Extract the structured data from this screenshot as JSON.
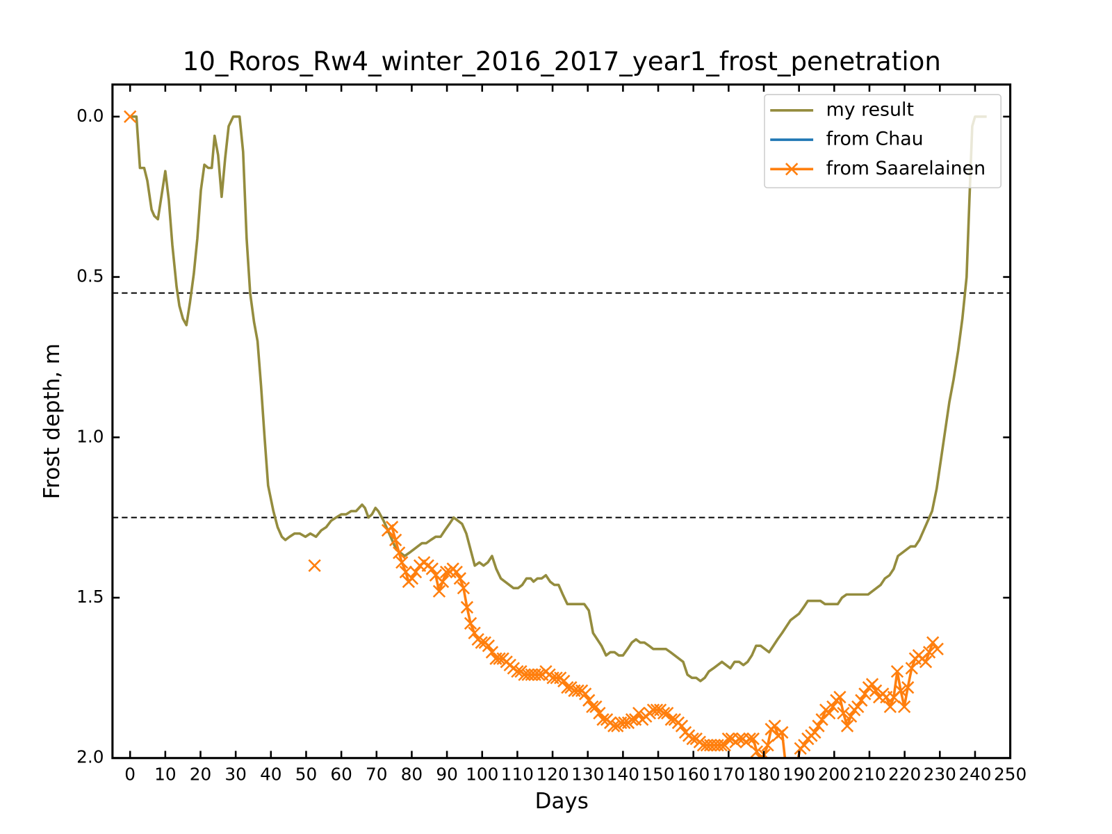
{
  "chart_data": {
    "type": "line",
    "title": "10_Roros_Rw4_winter_2016_2017_year1_frost_penetration",
    "xlabel": "Days",
    "ylabel": "Frost depth, m",
    "xlim": [
      -5,
      250
    ],
    "xticks": [
      0,
      10,
      20,
      30,
      40,
      50,
      60,
      70,
      80,
      90,
      100,
      110,
      120,
      130,
      140,
      150,
      160,
      170,
      180,
      190,
      200,
      210,
      220,
      230,
      240,
      250
    ],
    "ylim": [
      2.0,
      -0.1
    ],
    "y_inverted": true,
    "yticks": [
      {
        "value": 0,
        "label": "0.0"
      },
      0.5,
      {
        "value": 1,
        "label": "1.0"
      },
      1.5,
      {
        "value": 2,
        "label": "2.0"
      }
    ],
    "hlines": [
      0.55,
      1.25
    ],
    "legend": "upper right",
    "series": [
      {
        "name": "my result",
        "color": "#948c3e",
        "marker": "none",
        "x": [
          0,
          1.8,
          2.8,
          4,
          4.9,
          6.1,
          6.9,
          7.9,
          10,
          11,
          12,
          13.2,
          14,
          15,
          16,
          17,
          18.1,
          19.1,
          20.1,
          21.1,
          22.2,
          23.2,
          24,
          25,
          26,
          27,
          28,
          29.3,
          31.1,
          32.1,
          33.1,
          34.1,
          35.2,
          36.2,
          37.2,
          38.2,
          39.2,
          40.7,
          41.9,
          43.1,
          44.1,
          45.3,
          46.7,
          48.2,
          49.8,
          51.2,
          52.8,
          54.3,
          55.7,
          57.1,
          58.5,
          60,
          61.4,
          62.8,
          64.2,
          65.9,
          66.7,
          67.7,
          68.7,
          69.7,
          70.5,
          72,
          73.2,
          74.4,
          75.6,
          76.8,
          78,
          79.3,
          80.5,
          81.7,
          82.9,
          84.1,
          85.4,
          86.8,
          88.2,
          89.4,
          90.7,
          91.9,
          93.1,
          94.3,
          95.5,
          96.7,
          97.9,
          99.2,
          100.4,
          101.6,
          102.8,
          104,
          105.3,
          106.5,
          107.7,
          108.9,
          110.2,
          111.4,
          112.6,
          113.8,
          114.6,
          115.7,
          116.9,
          118.1,
          119.3,
          120.5,
          121.7,
          122.9,
          124.2,
          125.4,
          126.6,
          129,
          130.3,
          131.5,
          132.7,
          133.9,
          135.2,
          136.4,
          137.6,
          138.8,
          140,
          141.3,
          142.5,
          143.7,
          144.9,
          146.1,
          147.4,
          148.6,
          149.8,
          151,
          152.2,
          153.5,
          154.7,
          155.9,
          157.1,
          158.3,
          159.6,
          160.8,
          162,
          163.2,
          164.4,
          165.7,
          166.9,
          168.1,
          169.3,
          170.5,
          171.7,
          173,
          174.2,
          175.4,
          176.6,
          177.8,
          179.1,
          180.3,
          181.5,
          182.7,
          183.9,
          185.2,
          186.4,
          187.6,
          188.8,
          190,
          191.3,
          192.5,
          193.7,
          194.9,
          196.1,
          197.4,
          198.6,
          199.8,
          201,
          202.2,
          203.5,
          204.7,
          205.9,
          207.1,
          208.3,
          209.6,
          210.8,
          212,
          213.2,
          214.4,
          215.7,
          216.9,
          218.1,
          219.3,
          220.5,
          221.7,
          223,
          224.2,
          225.4,
          226.6,
          227.8,
          229.1,
          230.3,
          231.5,
          232.7,
          233.9,
          235.2,
          236.4,
          237.6,
          238.4,
          239.2,
          240,
          243.3
        ],
        "values": [
          0,
          0,
          0.16,
          0.16,
          0.2,
          0.29,
          0.31,
          0.32,
          0.17,
          0.26,
          0.4,
          0.53,
          0.59,
          0.63,
          0.65,
          0.58,
          0.49,
          0.38,
          0.23,
          0.15,
          0.16,
          0.16,
          0.06,
          0.12,
          0.25,
          0.13,
          0.03,
          0,
          0,
          0.11,
          0.38,
          0.55,
          0.64,
          0.7,
          0.84,
          1.0,
          1.15,
          1.23,
          1.28,
          1.31,
          1.32,
          1.31,
          1.3,
          1.3,
          1.31,
          1.3,
          1.31,
          1.29,
          1.28,
          1.26,
          1.25,
          1.24,
          1.24,
          1.23,
          1.23,
          1.21,
          1.22,
          1.25,
          1.24,
          1.22,
          1.23,
          1.26,
          1.29,
          1.32,
          1.35,
          1.36,
          1.37,
          1.36,
          1.35,
          1.34,
          1.33,
          1.33,
          1.32,
          1.31,
          1.31,
          1.29,
          1.27,
          1.25,
          1.26,
          1.27,
          1.3,
          1.35,
          1.4,
          1.39,
          1.4,
          1.39,
          1.37,
          1.41,
          1.44,
          1.45,
          1.46,
          1.47,
          1.47,
          1.46,
          1.44,
          1.44,
          1.45,
          1.44,
          1.44,
          1.43,
          1.45,
          1.46,
          1.46,
          1.49,
          1.52,
          1.52,
          1.52,
          1.52,
          1.54,
          1.61,
          1.63,
          1.65,
          1.68,
          1.67,
          1.67,
          1.68,
          1.68,
          1.66,
          1.64,
          1.63,
          1.64,
          1.64,
          1.65,
          1.66,
          1.66,
          1.66,
          1.66,
          1.67,
          1.68,
          1.69,
          1.7,
          1.74,
          1.75,
          1.75,
          1.76,
          1.75,
          1.73,
          1.72,
          1.71,
          1.7,
          1.71,
          1.72,
          1.7,
          1.7,
          1.71,
          1.7,
          1.68,
          1.65,
          1.65,
          1.66,
          1.67,
          1.65,
          1.63,
          1.61,
          1.59,
          1.57,
          1.56,
          1.55,
          1.53,
          1.51,
          1.51,
          1.51,
          1.51,
          1.52,
          1.52,
          1.52,
          1.52,
          1.5,
          1.49,
          1.49,
          1.49,
          1.49,
          1.49,
          1.49,
          1.48,
          1.47,
          1.46,
          1.44,
          1.43,
          1.41,
          1.37,
          1.36,
          1.35,
          1.34,
          1.34,
          1.32,
          1.29,
          1.26,
          1.23,
          1.16,
          1.07,
          0.98,
          0.89,
          0.82,
          0.73,
          0.63,
          0.5,
          0.26,
          0.03,
          0,
          0
        ]
      },
      {
        "name": "from Chau",
        "color": "#1f77b4",
        "marker": "none",
        "x": [],
        "values": []
      },
      {
        "name": "from Saarelainen",
        "color": "#ff7f0e",
        "marker": "x",
        "x": [
          0,
          26,
          52.4,
          63,
          73.2,
          74.4,
          75.4,
          76.4,
          77.2,
          78.3,
          79.1,
          80.1,
          81.1,
          82.3,
          83.5,
          84.6,
          85.8,
          86.8,
          87.8,
          88.8,
          89.8,
          90.9,
          91.7,
          92.7,
          93.7,
          94.7,
          95.7,
          96.7,
          97.8,
          98.8,
          99.8,
          100.8,
          101.8,
          102.8,
          103.9,
          104.9,
          105.9,
          106.9,
          107.9,
          108.9,
          110,
          111,
          112,
          113,
          114,
          115,
          116.1,
          117.1,
          118.1,
          119.1,
          120.1,
          121.1,
          122.2,
          123.2,
          124.2,
          125.2,
          126.2,
          127.2,
          128.3,
          129.3,
          130.3,
          131.3,
          132.3,
          133.3,
          134.3,
          135.4,
          136.4,
          137.4,
          138.4,
          139.4,
          140.4,
          141.5,
          142.5,
          143.5,
          144.5,
          145.5,
          146.5,
          147.6,
          148.6,
          149.6,
          150.6,
          151.6,
          152.6,
          153.7,
          154.7,
          155.7,
          156.7,
          157.7,
          158.7,
          159.8,
          160.8,
          161.8,
          162.8,
          163.8,
          164.8,
          165.9,
          166.9,
          167.9,
          168.9,
          169.9,
          170.9,
          172,
          173,
          174,
          175,
          176,
          177,
          178,
          179.1,
          180.1,
          181.1,
          182.1,
          183.1,
          184.1,
          185.2,
          186.2,
          188,
          190.4,
          191.5,
          192.5,
          193.5,
          194.5,
          195.5,
          196.5,
          197.6,
          198.6,
          199.6,
          200.6,
          201.6,
          202.6,
          203.7,
          204.7,
          205.7,
          206.7,
          207.7,
          208.7,
          209.8,
          210.8,
          211.8,
          212.8,
          213.8,
          214.8,
          215.9,
          216.9,
          217.9,
          218.9,
          219.9,
          220.9,
          222,
          223,
          224,
          225,
          226,
          227,
          228,
          229.3
        ],
        "values": [
          0,
          null,
          1.4,
          null,
          1.29,
          1.28,
          1.32,
          1.36,
          1.39,
          1.42,
          1.45,
          1.44,
          1.42,
          1.4,
          1.39,
          1.4,
          1.41,
          1.43,
          1.48,
          1.45,
          1.42,
          1.42,
          1.41,
          1.42,
          1.44,
          1.47,
          1.53,
          1.58,
          1.61,
          1.63,
          1.64,
          1.64,
          1.65,
          1.67,
          1.69,
          1.69,
          1.69,
          1.7,
          1.71,
          1.72,
          1.73,
          1.73,
          1.74,
          1.74,
          1.74,
          1.74,
          1.74,
          1.74,
          1.73,
          1.74,
          1.75,
          1.75,
          1.75,
          1.76,
          1.78,
          1.78,
          1.79,
          1.79,
          1.79,
          1.8,
          1.82,
          1.84,
          1.84,
          1.86,
          1.88,
          1.88,
          1.89,
          1.9,
          1.9,
          1.89,
          1.89,
          1.89,
          1.88,
          1.88,
          1.86,
          1.88,
          1.87,
          1.86,
          1.85,
          1.85,
          1.85,
          1.86,
          1.86,
          1.88,
          1.88,
          1.89,
          1.9,
          1.92,
          1.93,
          1.94,
          1.94,
          1.95,
          1.96,
          1.96,
          1.96,
          1.96,
          1.96,
          1.96,
          1.96,
          1.94,
          1.94,
          1.95,
          1.94,
          1.94,
          1.95,
          1.94,
          1.94,
          1.98,
          2.0,
          1.99,
          1.96,
          1.91,
          1.9,
          1.93,
          1.92,
          2.02,
          2.08,
          1.97,
          1.96,
          1.94,
          1.93,
          1.92,
          1.9,
          1.88,
          1.85,
          1.86,
          1.84,
          1.82,
          1.81,
          1.86,
          1.9,
          1.87,
          1.85,
          1.84,
          1.82,
          1.8,
          1.78,
          1.77,
          1.79,
          1.81,
          1.8,
          1.81,
          1.84,
          1.81,
          1.73,
          1.79,
          1.84,
          1.78,
          1.72,
          1.69,
          1.68,
          1.69,
          1.7,
          1.67,
          1.64,
          1.66
        ]
      }
    ]
  }
}
